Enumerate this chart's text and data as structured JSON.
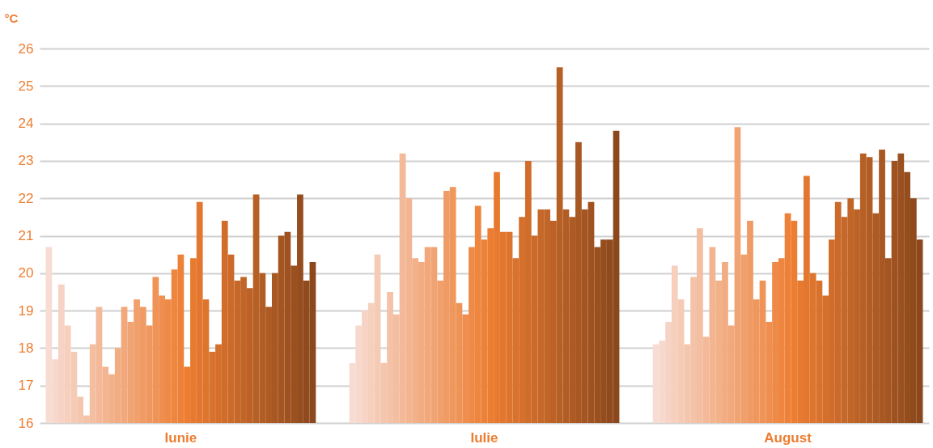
{
  "chart_data": {
    "type": "bar",
    "ylabel": "°C",
    "categories": [
      "Iunie",
      "Iulie",
      "August"
    ],
    "ylim": [
      16,
      26
    ],
    "yticks": [
      16,
      17,
      18,
      19,
      20,
      21,
      22,
      23,
      24,
      25,
      26
    ],
    "grid": "y",
    "legend": false,
    "series": [
      {
        "color": "#f7dcd3",
        "values": [
          20.7,
          17.6,
          18.1
        ]
      },
      {
        "color": "#f7d8cc",
        "values": [
          17.7,
          18.6,
          18.2
        ]
      },
      {
        "color": "#f6d3c4",
        "values": [
          19.7,
          19.0,
          18.7
        ]
      },
      {
        "color": "#f6cfbd",
        "values": [
          18.6,
          19.2,
          20.2
        ]
      },
      {
        "color": "#f5cbb6",
        "values": [
          17.9,
          20.5,
          19.3
        ]
      },
      {
        "color": "#f5c6ae",
        "values": [
          16.7,
          17.6,
          18.1
        ]
      },
      {
        "color": "#f4c2a7",
        "values": [
          16.2,
          19.5,
          19.9
        ]
      },
      {
        "color": "#f4bea0",
        "values": [
          18.1,
          18.9,
          21.2
        ]
      },
      {
        "color": "#f3b998",
        "values": [
          19.1,
          23.2,
          18.3
        ]
      },
      {
        "color": "#f3b591",
        "values": [
          17.5,
          22.0,
          20.7
        ]
      },
      {
        "color": "#f2b189",
        "values": [
          17.3,
          20.4,
          19.8
        ]
      },
      {
        "color": "#f2ac82",
        "values": [
          18.0,
          20.3,
          20.3
        ]
      },
      {
        "color": "#f2a87b",
        "values": [
          19.1,
          20.7,
          18.6
        ]
      },
      {
        "color": "#f1a473",
        "values": [
          18.7,
          20.7,
          23.9
        ]
      },
      {
        "color": "#f1a06c",
        "values": [
          19.3,
          19.8,
          20.5
        ]
      },
      {
        "color": "#f09b65",
        "values": [
          19.1,
          22.2,
          21.4
        ]
      },
      {
        "color": "#f0975d",
        "values": [
          18.6,
          22.3,
          19.3
        ]
      },
      {
        "color": "#ef9356",
        "values": [
          19.9,
          19.2,
          19.8
        ]
      },
      {
        "color": "#ef8e4f",
        "values": [
          19.4,
          18.9,
          18.7
        ]
      },
      {
        "color": "#ee8a47",
        "values": [
          19.3,
          20.7,
          20.3
        ]
      },
      {
        "color": "#ee8640",
        "values": [
          20.1,
          21.8,
          20.4
        ]
      },
      {
        "color": "#ed8138",
        "values": [
          20.5,
          20.9,
          21.6
        ]
      },
      {
        "color": "#ed7d31",
        "values": [
          17.5,
          21.2,
          21.4
        ]
      },
      {
        "color": "#e87a30",
        "values": [
          20.4,
          22.7,
          19.8
        ]
      },
      {
        "color": "#e3772f",
        "values": [
          21.9,
          21.1,
          22.6
        ]
      },
      {
        "color": "#de752e",
        "values": [
          19.3,
          21.1,
          20.0
        ]
      },
      {
        "color": "#d9722d",
        "values": [
          17.9,
          20.4,
          19.8
        ]
      },
      {
        "color": "#d5702c",
        "values": [
          18.1,
          21.5,
          19.4
        ]
      },
      {
        "color": "#d06d2b",
        "values": [
          21.4,
          23.0,
          20.9
        ]
      },
      {
        "color": "#cb6a2a",
        "values": [
          20.5,
          21.0,
          21.9
        ]
      },
      {
        "color": "#c66829",
        "values": [
          19.8,
          21.7,
          21.5
        ]
      },
      {
        "color": "#c16528",
        "values": [
          19.9,
          21.7,
          22.0
        ]
      },
      {
        "color": "#bc6226",
        "values": [
          19.6,
          21.4,
          21.7
        ]
      },
      {
        "color": "#b76025",
        "values": [
          22.1,
          25.5,
          23.2
        ]
      },
      {
        "color": "#b25d24",
        "values": [
          20.0,
          21.7,
          23.1
        ]
      },
      {
        "color": "#ad5a23",
        "values": [
          19.1,
          21.5,
          21.6
        ]
      },
      {
        "color": "#a85822",
        "values": [
          20.0,
          23.5,
          23.3
        ]
      },
      {
        "color": "#a45521",
        "values": [
          21.0,
          21.7,
          20.4
        ]
      },
      {
        "color": "#9f5220",
        "values": [
          21.1,
          21.9,
          23.0
        ]
      },
      {
        "color": "#9a501f",
        "values": [
          20.2,
          20.7,
          23.2
        ]
      },
      {
        "color": "#954d1e",
        "values": [
          22.1,
          20.9,
          22.7
        ]
      },
      {
        "color": "#904a1d",
        "values": [
          19.8,
          20.9,
          22.0
        ]
      },
      {
        "color": "#8b481c",
        "values": [
          20.3,
          23.8,
          20.9
        ]
      }
    ]
  }
}
